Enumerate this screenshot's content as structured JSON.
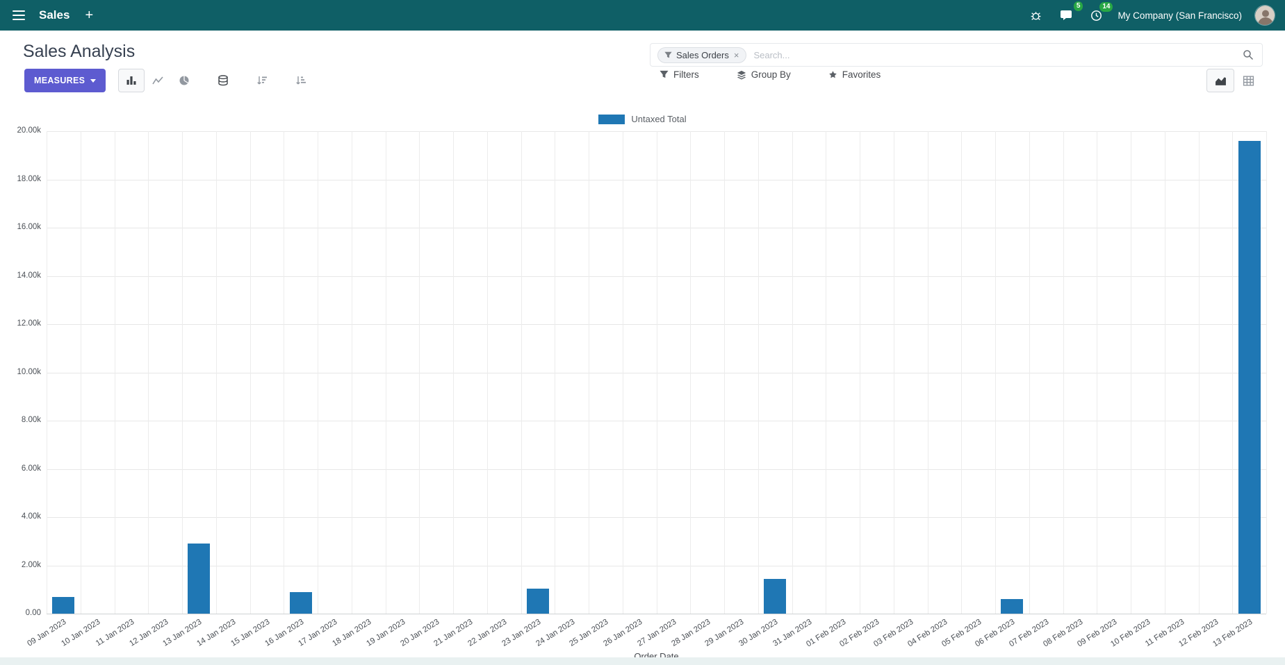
{
  "navbar": {
    "app_name": "Sales",
    "plus_label": "+",
    "messages_badge": "5",
    "activities_badge": "14",
    "company": "My Company (San Francisco)"
  },
  "control_panel": {
    "title": "Sales Analysis",
    "search": {
      "facet_label": "Sales Orders",
      "facet_remove": "×",
      "placeholder": "Search..."
    },
    "measures_label": "MEASURES",
    "filters_label": "Filters",
    "group_by_label": "Group By",
    "favorites_label": "Favorites"
  },
  "colors": {
    "navbar_bg": "#0f5f66",
    "primary_button": "#5d5bd0",
    "badge_green": "#28a745",
    "bar_blue": "#1f77b4"
  },
  "chart_data": {
    "type": "bar",
    "title": "",
    "xlabel": "Order Date",
    "ylabel": "",
    "ylim": [
      0,
      20000
    ],
    "grid": true,
    "legend_position": "top",
    "y_ticks": [
      "0.00",
      "2.00k",
      "4.00k",
      "6.00k",
      "8.00k",
      "10.00k",
      "12.00k",
      "14.00k",
      "16.00k",
      "18.00k",
      "20.00k"
    ],
    "categories": [
      "09 Jan 2023",
      "10 Jan 2023",
      "11 Jan 2023",
      "12 Jan 2023",
      "13 Jan 2023",
      "14 Jan 2023",
      "15 Jan 2023",
      "16 Jan 2023",
      "17 Jan 2023",
      "18 Jan 2023",
      "19 Jan 2023",
      "20 Jan 2023",
      "21 Jan 2023",
      "22 Jan 2023",
      "23 Jan 2023",
      "24 Jan 2023",
      "25 Jan 2023",
      "26 Jan 2023",
      "27 Jan 2023",
      "28 Jan 2023",
      "29 Jan 2023",
      "30 Jan 2023",
      "31 Jan 2023",
      "01 Feb 2023",
      "02 Feb 2023",
      "03 Feb 2023",
      "04 Feb 2023",
      "05 Feb 2023",
      "06 Feb 2023",
      "07 Feb 2023",
      "08 Feb 2023",
      "09 Feb 2023",
      "10 Feb 2023",
      "11 Feb 2023",
      "12 Feb 2023",
      "13 Feb 2023"
    ],
    "series": [
      {
        "name": "Untaxed Total",
        "color": "#1f77b4",
        "values": [
          700,
          0,
          0,
          0,
          2900,
          0,
          0,
          900,
          0,
          0,
          0,
          0,
          0,
          0,
          1050,
          0,
          0,
          0,
          0,
          0,
          0,
          1450,
          0,
          0,
          0,
          0,
          0,
          0,
          600,
          0,
          0,
          0,
          0,
          0,
          0,
          19600
        ]
      }
    ]
  }
}
